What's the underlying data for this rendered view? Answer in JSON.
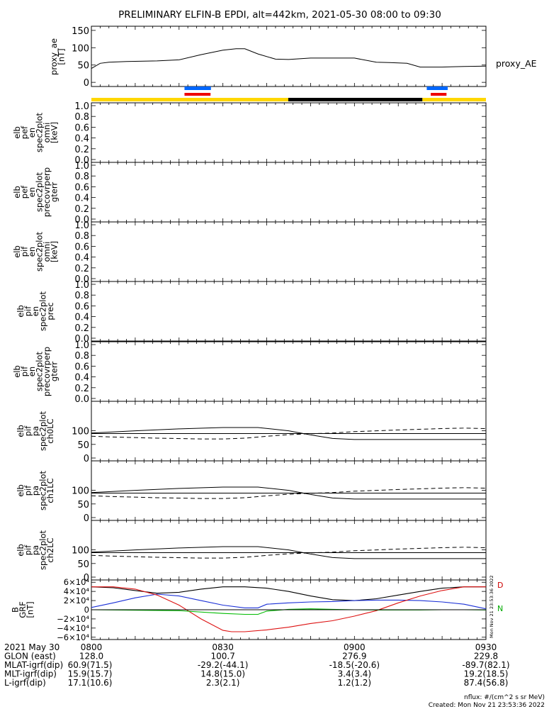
{
  "title": "PRELIMINARY ELFIN-B EPDI, alt=442km, 2021-05-30 08:00 to 09:30",
  "colors": {
    "axis": "#000000",
    "blue": "#0066ff",
    "red": "#ee0000",
    "yellow": "#ffd700",
    "green": "#00bb00",
    "black": "#000000"
  },
  "ae_panel": {
    "ylabel": [
      "proxy_ae",
      "[nT]"
    ],
    "side_label": "proxy_AE",
    "yticks": [
      "0",
      "50",
      "100",
      "150"
    ]
  },
  "ae_series": {
    "t": [
      0,
      2,
      4,
      8,
      15,
      20,
      25,
      30,
      33,
      35,
      38,
      42,
      45,
      50,
      55,
      60,
      65,
      68,
      72,
      75,
      80,
      85,
      90
    ],
    "v": [
      40,
      55,
      58,
      60,
      62,
      65,
      80,
      93,
      97,
      97,
      82,
      67,
      66,
      70,
      70,
      70,
      58,
      57,
      55,
      44,
      44,
      46,
      47
    ]
  },
  "range_bars": {
    "blue": [
      [
        23.6,
        30.3
      ],
      [
        85.0,
        90.3
      ]
    ],
    "red": [
      [
        23.6,
        30.2
      ],
      [
        86.0,
        90.0
      ]
    ],
    "status": [
      {
        "from": 0,
        "to": 49.9,
        "color": "yellow"
      },
      {
        "from": 49.9,
        "to": 83.9,
        "color": "black"
      },
      {
        "from": 83.9,
        "to": 100,
        "color": "yellow"
      }
    ]
  },
  "empty_panels": [
    {
      "ylabel": [
        "elb",
        "pef",
        "en",
        "spec2plot",
        "omni",
        "[keV]"
      ],
      "yticks": [
        "0.0",
        "0.2",
        "0.4",
        "0.6",
        "0.8",
        "1.0"
      ]
    },
    {
      "ylabel": [
        "elb",
        "pef",
        "en",
        "spec2plot",
        "precovrperp",
        "gterr"
      ],
      "yticks": [
        "0.0",
        "0.2",
        "0.4",
        "0.6",
        "0.8",
        "1.0"
      ]
    },
    {
      "ylabel": [
        "elb",
        "pif",
        "en",
        "spec2plot",
        "omni",
        "[keV]"
      ],
      "yticks": [
        "0.0",
        "0.2",
        "0.4",
        "0.6",
        "0.8",
        "1.0"
      ]
    },
    {
      "ylabel": [
        "elb",
        "pif",
        "en",
        "spec2plot",
        "prec"
      ],
      "yticks": [
        "0.0",
        "0.2",
        "0.4",
        "0.6",
        "0.8",
        "1.0"
      ]
    },
    {
      "ylabel": [
        "elb",
        "pif",
        "en",
        "spec2plot",
        "precovrperp",
        "gterr"
      ],
      "yticks": [
        "0.0",
        "0.2",
        "0.4",
        "0.6",
        "0.8",
        "1.0"
      ]
    }
  ],
  "pa_panels": [
    {
      "ylabel": [
        "elb",
        "pif",
        "pa",
        "spec2plot",
        "ch0LC"
      ],
      "yticks": [
        "0",
        "50",
        "100"
      ]
    },
    {
      "ylabel": [
        "elb",
        "pif",
        "pa",
        "spec2plot",
        "ch1LC"
      ],
      "yticks": [
        "0",
        "50",
        "100"
      ]
    },
    {
      "ylabel": [
        "elb",
        "pif",
        "pa",
        "spec2plot",
        "ch2LC"
      ],
      "yticks": [
        "0",
        "50",
        "100"
      ]
    }
  ],
  "pa_series": {
    "solid": {
      "t": [
        0,
        10,
        20,
        30,
        38,
        45,
        50,
        55,
        60,
        65,
        75,
        85,
        90
      ],
      "v": [
        92,
        100,
        107,
        112,
        112,
        100,
        85,
        72,
        68,
        68,
        68,
        68,
        68
      ]
    },
    "dashed": {
      "t": [
        0,
        5,
        15,
        25,
        30,
        35,
        40,
        45,
        50,
        55,
        60,
        70,
        80,
        85,
        90
      ],
      "v": [
        80,
        77,
        73,
        70,
        70,
        73,
        80,
        86,
        89,
        92,
        97,
        103,
        108,
        110,
        108
      ]
    },
    "flat": 90
  },
  "bgrf_panel": {
    "ylabel": [
      "B",
      "GRF",
      "[nT]"
    ],
    "yticks": [
      "6×10⁴",
      "4×10⁴",
      "2×10⁴",
      "0",
      "−2×10⁴",
      "−4×10⁴",
      "−6×10⁴"
    ],
    "ylim": [
      -65000,
      65000
    ],
    "legend": [
      "D",
      "N"
    ],
    "side_text": "Mon Nov 21 23:53:36 2022",
    "series": [
      {
        "name": "black",
        "t": [
          0,
          5,
          10,
          15,
          20,
          25,
          30,
          35,
          40,
          45,
          50,
          55,
          60,
          65,
          70,
          75,
          80,
          85,
          90
        ],
        "v": [
          50000,
          48000,
          42000,
          36000,
          38000,
          45000,
          50000,
          50000,
          47000,
          40000,
          30000,
          22000,
          20000,
          24000,
          32000,
          40000,
          47000,
          50000,
          50000
        ]
      },
      {
        "name": "blue",
        "t": [
          0,
          5,
          10,
          15,
          20,
          25,
          30,
          35,
          38,
          40,
          45,
          50,
          55,
          60,
          65,
          70,
          75,
          80,
          85,
          90
        ],
        "v": [
          5000,
          15000,
          26000,
          34000,
          30000,
          20000,
          10000,
          4000,
          4000,
          12000,
          15000,
          17000,
          18000,
          20000,
          21000,
          21000,
          20000,
          17000,
          12000,
          2000
        ]
      },
      {
        "name": "red",
        "t": [
          0,
          5,
          10,
          15,
          20,
          25,
          30,
          32,
          35,
          40,
          45,
          50,
          55,
          60,
          65,
          70,
          75,
          80,
          85,
          90
        ],
        "v": [
          50000,
          50000,
          45000,
          32000,
          10000,
          -20000,
          -45000,
          -48000,
          -48000,
          -44000,
          -38000,
          -30000,
          -24000,
          -14000,
          -2000,
          15000,
          30000,
          42000,
          50000,
          50000
        ]
      },
      {
        "name": "green",
        "t": [
          0,
          20,
          30,
          35,
          38,
          40,
          45,
          50,
          55,
          60,
          65,
          70,
          75,
          80,
          85,
          90
        ],
        "v": [
          0,
          -2000,
          -8000,
          -10000,
          -10000,
          -3000,
          1000,
          2000,
          1000,
          0,
          -500,
          -500,
          -500,
          0,
          0,
          -500
        ]
      },
      {
        "name": "zero",
        "t": [
          0,
          90
        ],
        "v": [
          0,
          0
        ]
      }
    ]
  },
  "x_ticks": [
    "0800",
    "0830",
    "0900",
    "0930"
  ],
  "ephem": {
    "labels": [
      "2021 May 30",
      "GLON (east)",
      "MLAT-igrf(dip)",
      "MLT-igrf(dip)",
      "L-igrf(dip)"
    ],
    "first_values": [
      "60.9(71.5)",
      "15.9(15.7)",
      "17.1(10.6)"
    ],
    "columns": [
      [
        "0800",
        "128.0",
        "",
        "",
        ""
      ],
      [
        "0830",
        "100.7",
        "-29.2(-44.1)",
        "14.8(15.0)",
        "2.3(2.1)"
      ],
      [
        "0900",
        "276.9",
        "-18.5(-20.6)",
        "3.4(3.4)",
        "1.2(1.2)"
      ],
      [
        "0930",
        "229.8",
        "-89.7(82.1)",
        "19.2(18.5)",
        "87.4(56.8)"
      ]
    ]
  },
  "footer": [
    "nflux: #/(cm^2 s sr MeV)",
    "Created: Mon Nov 21 23:53:36 2022"
  ]
}
